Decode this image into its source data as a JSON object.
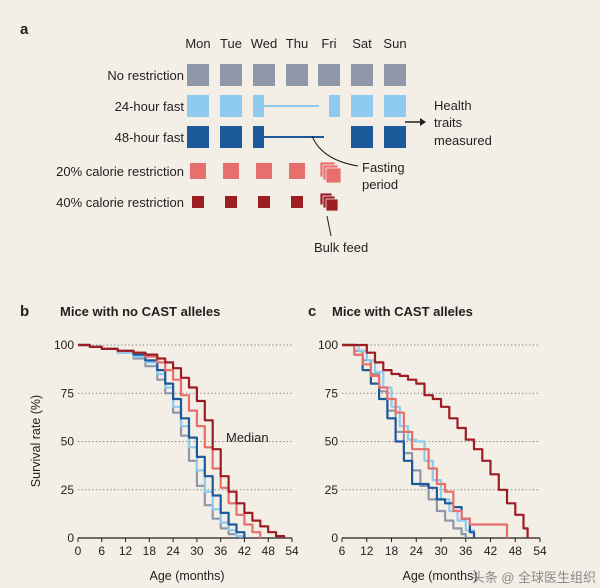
{
  "panel_a": {
    "letter": "a",
    "days": [
      "Mon",
      "Tue",
      "Wed",
      "Thu",
      "Fri",
      "Sat",
      "Sun"
    ],
    "rows": [
      {
        "label": "No restriction",
        "color": "#8e98a8",
        "pattern": [
          "full",
          "full",
          "full",
          "full",
          "full",
          "full",
          "full"
        ]
      },
      {
        "label": "24-hour fast",
        "color": "#8ecbee",
        "pattern": [
          "full",
          "full",
          "half-left",
          "fast-line",
          "half-right",
          "full",
          "full"
        ]
      },
      {
        "label": "48-hour fast",
        "color": "#1d5a9c",
        "pattern": [
          "full",
          "full",
          "half-left",
          "fast-line",
          "fast-line-end",
          "full",
          "full"
        ]
      },
      {
        "label": "20% calorie restriction",
        "color": "#e86f6c",
        "pattern": [
          "medium",
          "medium",
          "medium",
          "medium",
          "bulk",
          "none",
          "none"
        ]
      },
      {
        "label": "40% calorie restriction",
        "color": "#9c1e24",
        "pattern": [
          "small",
          "small",
          "small",
          "small",
          "bulk",
          "none",
          "none"
        ]
      }
    ],
    "health_label": [
      "Health",
      "traits",
      "measured"
    ],
    "fasting_label": [
      "Fasting",
      "period"
    ],
    "bulk_label": "Bulk feed"
  },
  "chart_data": [
    {
      "type": "line",
      "panel": "b",
      "title": "Mice with no CAST alleles",
      "xlabel": "Age (months)",
      "ylabel": "Survival rate (%)",
      "xlim": [
        0,
        54
      ],
      "ylim": [
        0,
        100
      ],
      "xticks": [
        0,
        6,
        12,
        18,
        24,
        30,
        36,
        42,
        48,
        54
      ],
      "yticks": [
        0,
        25,
        50,
        75,
        100
      ],
      "gridlines": "horizontal-dotted",
      "annotation": "Median",
      "series": [
        {
          "color": "#8e98a8",
          "x": [
            0,
            3,
            6,
            10,
            14,
            17,
            20,
            22,
            24,
            26,
            28,
            30,
            32,
            34,
            36,
            38,
            40,
            41
          ],
          "y": [
            100,
            99,
            98,
            96,
            93,
            89,
            82,
            75,
            65,
            53,
            40,
            27,
            17,
            10,
            5,
            2,
            1,
            0
          ]
        },
        {
          "color": "#8ecbee",
          "x": [
            0,
            3,
            6,
            10,
            14,
            17,
            20,
            22,
            24,
            26,
            28,
            30,
            32,
            34,
            36,
            38,
            40,
            42
          ],
          "y": [
            100,
            99,
            98,
            96,
            94,
            91,
            85,
            78,
            68,
            58,
            47,
            35,
            24,
            15,
            8,
            4,
            1,
            0
          ]
        },
        {
          "color": "#1d5a9c",
          "x": [
            0,
            3,
            6,
            10,
            14,
            17,
            20,
            22,
            24,
            26,
            28,
            30,
            32,
            34,
            36,
            38,
            40,
            42
          ],
          "y": [
            100,
            99,
            98,
            97,
            95,
            92,
            87,
            80,
            72,
            62,
            52,
            42,
            32,
            22,
            13,
            7,
            3,
            0
          ]
        },
        {
          "color": "#e86f6c",
          "x": [
            0,
            3,
            6,
            10,
            14,
            17,
            20,
            22,
            24,
            26,
            28,
            30,
            32,
            34,
            36,
            38,
            40,
            42,
            44,
            46
          ],
          "y": [
            100,
            99,
            98,
            97,
            96,
            94,
            91,
            87,
            82,
            74,
            66,
            58,
            47,
            36,
            26,
            18,
            12,
            7,
            3,
            0
          ]
        },
        {
          "color": "#9c1e24",
          "x": [
            0,
            3,
            6,
            10,
            14,
            17,
            20,
            22,
            24,
            26,
            28,
            30,
            32,
            34,
            36,
            38,
            40,
            42,
            44,
            46,
            48,
            50,
            52
          ],
          "y": [
            100,
            99,
            98,
            97,
            96,
            95,
            93,
            91,
            88,
            83,
            78,
            71,
            61,
            46,
            32,
            24,
            18,
            13,
            9,
            6,
            3,
            1,
            0
          ]
        }
      ]
    },
    {
      "type": "line",
      "panel": "c",
      "title": "Mice with CAST alleles",
      "xlabel": "Age (months)",
      "ylabel": "",
      "xlim": [
        6,
        54
      ],
      "ylim": [
        0,
        100
      ],
      "xticks": [
        6,
        12,
        18,
        24,
        30,
        36,
        42,
        48,
        54
      ],
      "yticks": [
        0,
        25,
        50,
        75,
        100
      ],
      "gridlines": "horizontal-dotted",
      "series": [
        {
          "color": "#8e98a8",
          "x": [
            6,
            9,
            11,
            13,
            15,
            17,
            19,
            21,
            23,
            25,
            27,
            29,
            31,
            33,
            35,
            36
          ],
          "y": [
            100,
            97,
            92,
            85,
            76,
            66,
            55,
            44,
            35,
            27,
            20,
            14,
            9,
            5,
            2,
            0
          ]
        },
        {
          "color": "#8ecbee",
          "x": [
            6,
            10,
            12,
            14,
            16,
            18,
            20,
            22,
            24,
            26,
            28,
            30,
            32,
            34,
            36,
            38
          ],
          "y": [
            100,
            97,
            92,
            86,
            78,
            68,
            58,
            51,
            50,
            40,
            30,
            20,
            14,
            9,
            4,
            0
          ]
        },
        {
          "color": "#1d5a9c",
          "x": [
            6,
            9,
            11,
            13,
            15,
            17,
            19,
            21,
            23,
            25,
            27,
            29,
            31,
            33,
            35,
            37,
            38
          ],
          "y": [
            100,
            95,
            87,
            80,
            72,
            62,
            50,
            40,
            28,
            28,
            26,
            20,
            18,
            16,
            10,
            3,
            0
          ]
        },
        {
          "color": "#e86f6c",
          "x": [
            6,
            9,
            11,
            13,
            15,
            17,
            19,
            21,
            23,
            25,
            27,
            29,
            31,
            33,
            35,
            37,
            39,
            43,
            46
          ],
          "y": [
            100,
            95,
            90,
            84,
            78,
            72,
            65,
            55,
            46,
            46,
            36,
            28,
            24,
            14,
            10,
            7,
            7,
            7,
            0
          ]
        },
        {
          "color": "#9c1e24",
          "x": [
            6,
            10,
            12,
            14,
            16,
            18,
            20,
            22,
            24,
            26,
            28,
            30,
            32,
            34,
            36,
            38,
            40,
            42,
            44,
            46,
            48,
            50,
            51
          ],
          "y": [
            100,
            100,
            96,
            91,
            87,
            85,
            84,
            82,
            80,
            74,
            72,
            68,
            62,
            57,
            51,
            46,
            40,
            33,
            25,
            18,
            12,
            5,
            0
          ]
        }
      ]
    }
  ],
  "watermark": "头条 @ 全球医生组织"
}
